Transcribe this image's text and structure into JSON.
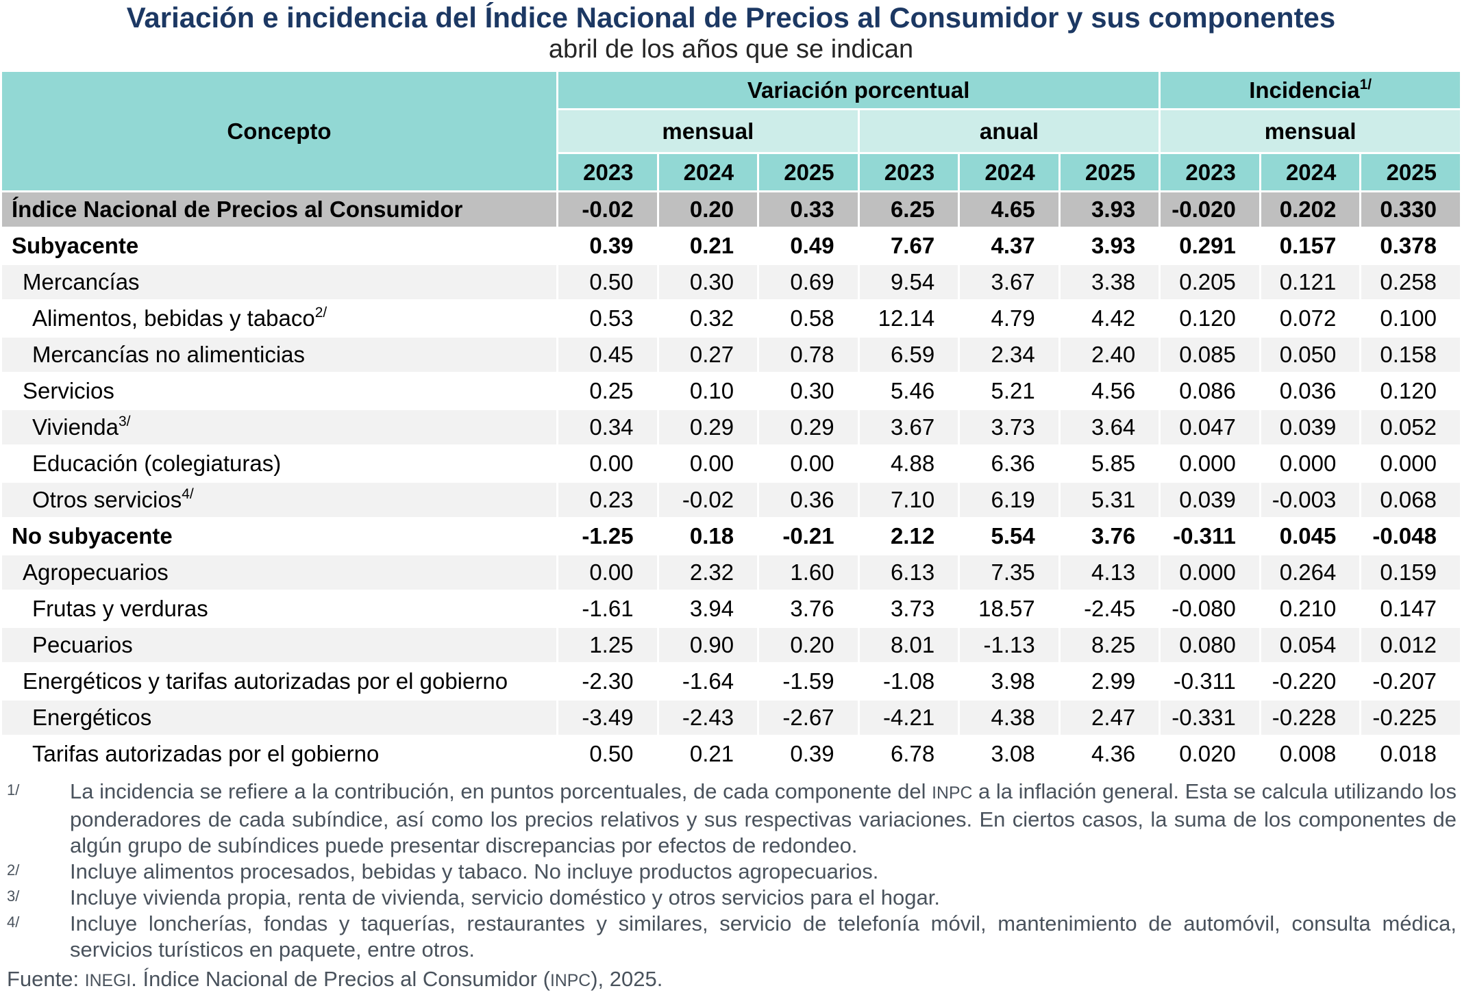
{
  "chart_data": {
    "type": "table",
    "title": "Variación e incidencia del Índice Nacional de Precios al Consumidor y sus componentes",
    "subtitle": "abril de los años que se indican",
    "header": {
      "concept": "Concepto",
      "groups": [
        {
          "label": "Variación porcentual",
          "sup": "",
          "span": 6
        },
        {
          "label": "Incidencia",
          "sup": "1/",
          "span": 3
        }
      ],
      "subgroups": [
        {
          "label": "mensual",
          "span": 3
        },
        {
          "label": "anual",
          "span": 3
        },
        {
          "label": "mensual",
          "span": 3
        }
      ],
      "years": [
        "2023",
        "2024",
        "2025",
        "2023",
        "2024",
        "2025",
        "2023",
        "2024",
        "2025"
      ]
    },
    "rows": [
      {
        "concept": "Índice Nacional de Precios al Consumidor",
        "sup": "",
        "indent": 0,
        "bold": true,
        "shade": "gray",
        "values": [
          "-0.02",
          "0.20",
          "0.33",
          "6.25",
          "4.65",
          "3.93",
          "-0.020",
          "0.202",
          "0.330"
        ]
      },
      {
        "concept": "Subyacente",
        "sup": "",
        "indent": 0,
        "bold": true,
        "shade": "white",
        "values": [
          "0.39",
          "0.21",
          "0.49",
          "7.67",
          "4.37",
          "3.93",
          "0.291",
          "0.157",
          "0.378"
        ]
      },
      {
        "concept": "Mercancías",
        "sup": "",
        "indent": 1,
        "bold": false,
        "shade": "stripe",
        "values": [
          "0.50",
          "0.30",
          "0.69",
          "9.54",
          "3.67",
          "3.38",
          "0.205",
          "0.121",
          "0.258"
        ]
      },
      {
        "concept": "Alimentos, bebidas y tabaco",
        "sup": "2/",
        "indent": 2,
        "bold": false,
        "shade": "white",
        "values": [
          "0.53",
          "0.32",
          "0.58",
          "12.14",
          "4.79",
          "4.42",
          "0.120",
          "0.072",
          "0.100"
        ]
      },
      {
        "concept": "Mercancías no alimenticias",
        "sup": "",
        "indent": 2,
        "bold": false,
        "shade": "stripe",
        "values": [
          "0.45",
          "0.27",
          "0.78",
          "6.59",
          "2.34",
          "2.40",
          "0.085",
          "0.050",
          "0.158"
        ]
      },
      {
        "concept": "Servicios",
        "sup": "",
        "indent": 1,
        "bold": false,
        "shade": "white",
        "values": [
          "0.25",
          "0.10",
          "0.30",
          "5.46",
          "5.21",
          "4.56",
          "0.086",
          "0.036",
          "0.120"
        ]
      },
      {
        "concept": "Vivienda",
        "sup": "3/",
        "indent": 2,
        "bold": false,
        "shade": "stripe",
        "values": [
          "0.34",
          "0.29",
          "0.29",
          "3.67",
          "3.73",
          "3.64",
          "0.047",
          "0.039",
          "0.052"
        ]
      },
      {
        "concept": "Educación (colegiaturas)",
        "sup": "",
        "indent": 2,
        "bold": false,
        "shade": "white",
        "values": [
          "0.00",
          "0.00",
          "0.00",
          "4.88",
          "6.36",
          "5.85",
          "0.000",
          "0.000",
          "0.000"
        ]
      },
      {
        "concept": "Otros servicios",
        "sup": "4/",
        "indent": 2,
        "bold": false,
        "shade": "stripe",
        "values": [
          "0.23",
          "-0.02",
          "0.36",
          "7.10",
          "6.19",
          "5.31",
          "0.039",
          "-0.003",
          "0.068"
        ]
      },
      {
        "concept": "No subyacente",
        "sup": "",
        "indent": 0,
        "bold": true,
        "shade": "white",
        "values": [
          "-1.25",
          "0.18",
          "-0.21",
          "2.12",
          "5.54",
          "3.76",
          "-0.311",
          "0.045",
          "-0.048"
        ]
      },
      {
        "concept": "Agropecuarios",
        "sup": "",
        "indent": 1,
        "bold": false,
        "shade": "stripe",
        "values": [
          "0.00",
          "2.32",
          "1.60",
          "6.13",
          "7.35",
          "4.13",
          "0.000",
          "0.264",
          "0.159"
        ]
      },
      {
        "concept": "Frutas y verduras",
        "sup": "",
        "indent": 2,
        "bold": false,
        "shade": "white",
        "values": [
          "-1.61",
          "3.94",
          "3.76",
          "3.73",
          "18.57",
          "-2.45",
          "-0.080",
          "0.210",
          "0.147"
        ]
      },
      {
        "concept": "Pecuarios",
        "sup": "",
        "indent": 2,
        "bold": false,
        "shade": "stripe",
        "values": [
          "1.25",
          "0.90",
          "0.20",
          "8.01",
          "-1.13",
          "8.25",
          "0.080",
          "0.054",
          "0.012"
        ]
      },
      {
        "concept": "Energéticos y tarifas autorizadas por el gobierno",
        "sup": "",
        "indent": 1,
        "bold": false,
        "shade": "white",
        "values": [
          "-2.30",
          "-1.64",
          "-1.59",
          "-1.08",
          "3.98",
          "2.99",
          "-0.311",
          "-0.220",
          "-0.207"
        ]
      },
      {
        "concept": "Energéticos",
        "sup": "",
        "indent": 2,
        "bold": false,
        "shade": "stripe",
        "values": [
          "-3.49",
          "-2.43",
          "-2.67",
          "-4.21",
          "4.38",
          "2.47",
          "-0.331",
          "-0.228",
          "-0.225"
        ]
      },
      {
        "concept": "Tarifas autorizadas por el gobierno",
        "sup": "",
        "indent": 2,
        "bold": false,
        "shade": "white",
        "values": [
          "0.50",
          "0.21",
          "0.39",
          "6.78",
          "3.08",
          "4.36",
          "0.020",
          "0.008",
          "0.018"
        ]
      }
    ],
    "footnotes": [
      {
        "marker": "1/",
        "text": "La incidencia se refiere a la contribución, en puntos porcentuales, de cada componente del INPC a la inflación general. Esta se calcula utilizando los ponderadores de cada subíndice, así como los precios relativos y sus respectivas variaciones. En ciertos casos, la suma de los componentes de algún grupo de subíndices puede presentar discrepancias por efectos de redondeo."
      },
      {
        "marker": "2/",
        "text": "Incluye alimentos procesados, bebidas y tabaco. No incluye productos agropecuarios."
      },
      {
        "marker": "3/",
        "text": "Incluye vivienda propia, renta de vivienda, servicio doméstico y otros servicios para el hogar."
      },
      {
        "marker": "4/",
        "text": "Incluye loncherías, fondas y taquerías, restaurantes y similares, servicio de telefonía móvil, mantenimiento de automóvil, consulta médica, servicios turísticos en paquete, entre otros."
      }
    ],
    "source": "Fuente: INEGI. Índice Nacional de Precios al Consumidor (INPC), 2025."
  },
  "colors": {
    "header_teal": "#92D8D4",
    "header_teal_light": "#CDEDE9",
    "total_row_gray": "#BFBFBF",
    "stripe_gray": "#F2F2F2",
    "title_navy": "#1C3863",
    "footnote_gray": "#49525C"
  }
}
